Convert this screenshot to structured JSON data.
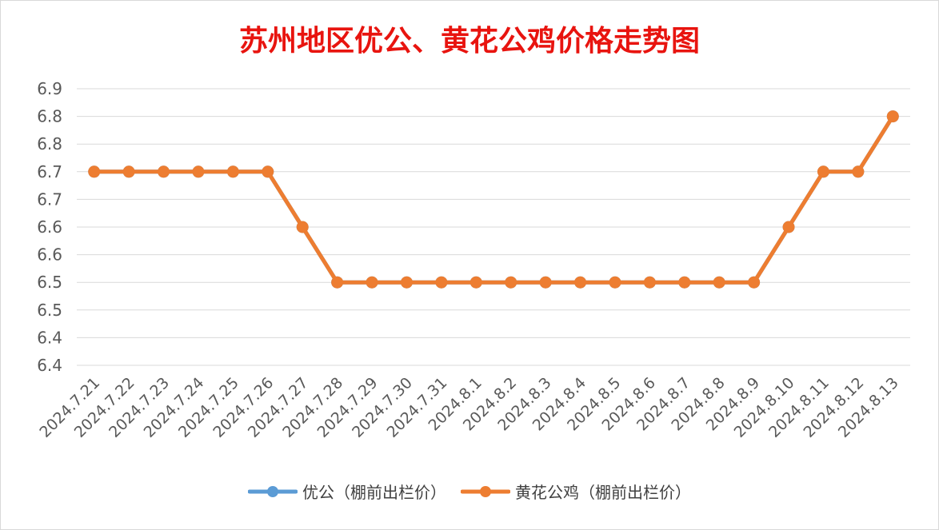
{
  "chart_data": {
    "type": "line",
    "title": "苏州地区优公、黄花公鸡价格走势图",
    "xlabel": "",
    "ylabel": "",
    "categories": [
      "2024.7.21",
      "2024.7.22",
      "2024.7.23",
      "2024.7.24",
      "2024.7.25",
      "2024.7.26",
      "2024.7.27",
      "2024.7.28",
      "2024.7.29",
      "2024.7.30",
      "2024.7.31",
      "2024.8.1",
      "2024.8.2",
      "2024.8.3",
      "2024.8.4",
      "2024.8.5",
      "2024.8.6",
      "2024.8.7",
      "2024.8.8",
      "2024.8.9",
      "2024.8.10",
      "2024.8.11",
      "2024.8.12",
      "2024.8.13"
    ],
    "y_ticks": [
      "6.9",
      "6.8",
      "6.8",
      "6.7",
      "6.7",
      "6.6",
      "6.6",
      "6.5",
      "6.5",
      "6.4",
      "6.4"
    ],
    "ylim": [
      6.35,
      6.85
    ],
    "grid": true,
    "legend_position": "bottom",
    "series": [
      {
        "name": "优公（棚前出栏价）",
        "color": "#5b9bd5",
        "values": [
          6.7,
          6.7,
          6.7,
          6.7,
          6.7,
          6.7,
          6.6,
          6.5,
          6.5,
          6.5,
          6.5,
          6.5,
          6.5,
          6.5,
          6.5,
          6.5,
          6.5,
          6.5,
          6.5,
          6.5,
          6.6,
          6.7,
          6.7,
          6.8
        ]
      },
      {
        "name": "黄花公鸡（棚前出栏价）",
        "color": "#ed7d31",
        "values": [
          6.7,
          6.7,
          6.7,
          6.7,
          6.7,
          6.7,
          6.6,
          6.5,
          6.5,
          6.5,
          6.5,
          6.5,
          6.5,
          6.5,
          6.5,
          6.5,
          6.5,
          6.5,
          6.5,
          6.5,
          6.6,
          6.7,
          6.7,
          6.8
        ]
      }
    ]
  }
}
